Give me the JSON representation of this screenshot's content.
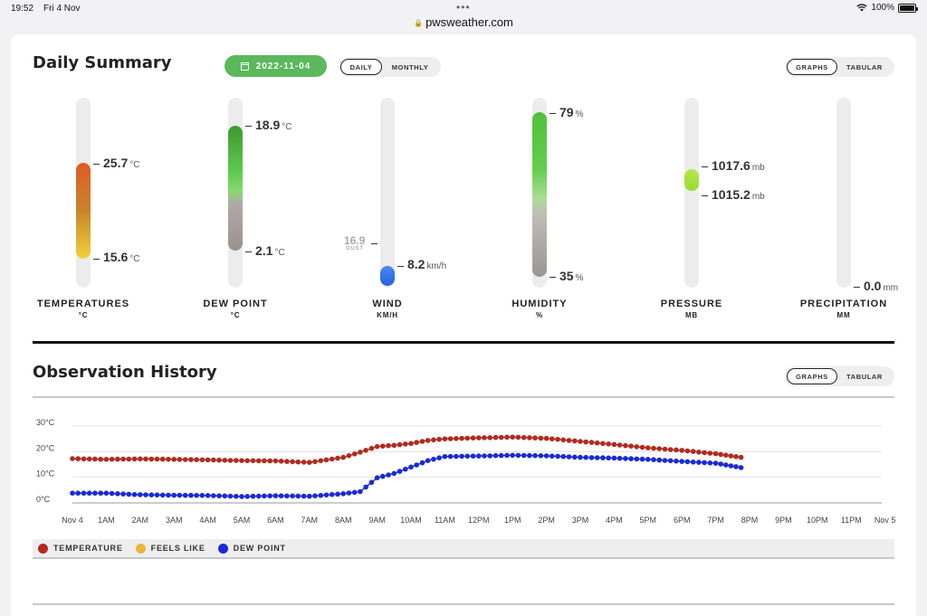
{
  "status_bar": {
    "time": "19:52",
    "date": "Fri 4 Nov",
    "url": "pwsweather.com",
    "battery": "100%"
  },
  "daily_summary": {
    "title": "Daily Summary",
    "date": "2022-11-04",
    "period_toggle": [
      "DAILY",
      "MONTHLY"
    ],
    "period_active": "DAILY",
    "view_toggle": [
      "GRAPHS",
      "TABULAR"
    ],
    "view_active": "GRAPHS"
  },
  "gauges": [
    {
      "label": "TEMPERATURES",
      "unit_label": "°C",
      "high": "25.7",
      "low": "15.6",
      "unit": "°C"
    },
    {
      "label": "DEW POINT",
      "unit_label": "°C",
      "high": "18.9",
      "low": "2.1",
      "unit": "°C"
    },
    {
      "label": "WIND",
      "unit_label": "KM/H",
      "value": "8.2",
      "unit": "km/h",
      "gust": "16.9",
      "gust_label": "GUST"
    },
    {
      "label": "HUMIDITY",
      "unit_label": "%",
      "high": "79",
      "low": "35",
      "unit": "%"
    },
    {
      "label": "PRESSURE",
      "unit_label": "MB",
      "high": "1017.6",
      "low": "1015.2",
      "unit": "mb"
    },
    {
      "label": "PRECIPITATION",
      "unit_label": "MM",
      "value": "0.0",
      "unit": "mm"
    }
  ],
  "observation_history": {
    "title": "Observation History",
    "view_toggle": [
      "GRAPHS",
      "TABULAR"
    ],
    "view_active": "GRAPHS"
  },
  "legend": [
    {
      "label": "TEMPERATURE",
      "color": "#b22a1e"
    },
    {
      "label": "FEELS LIKE",
      "color": "#e8b73a"
    },
    {
      "label": "DEW POINT",
      "color": "#1a2ad6"
    }
  ],
  "chart_data": {
    "type": "line",
    "y_ticks": [
      "30°C",
      "20°C",
      "10°C",
      "0°C"
    ],
    "ylim": [
      0,
      30
    ],
    "x_ticks": [
      "Nov 4",
      "1AM",
      "2AM",
      "3AM",
      "4AM",
      "5AM",
      "6AM",
      "7AM",
      "8AM",
      "9AM",
      "10AM",
      "11AM",
      "12PM",
      "1PM",
      "2PM",
      "3PM",
      "4PM",
      "5PM",
      "6PM",
      "7PM",
      "8PM",
      "9PM",
      "10PM",
      "11PM",
      "Nov 5"
    ],
    "x": [
      0,
      1,
      2,
      3,
      4,
      5,
      6,
      7,
      8,
      8.5,
      9,
      9.5,
      10,
      10.5,
      11,
      12,
      13,
      14,
      15,
      16,
      17,
      18,
      19,
      19.75
    ],
    "grid": true,
    "series": [
      {
        "name": "TEMPERATURE",
        "color": "#b22a1e",
        "values": [
          17.3,
          17.0,
          17.2,
          17.0,
          16.8,
          16.5,
          16.4,
          15.8,
          17.8,
          19.8,
          22.0,
          22.5,
          23.2,
          24.4,
          25.0,
          25.4,
          25.7,
          25.2,
          24.0,
          22.8,
          21.5,
          20.5,
          19.2,
          17.8
        ]
      },
      {
        "name": "DEW POINT",
        "color": "#1a2ad6",
        "values": [
          3.8,
          3.8,
          3.2,
          3.0,
          2.9,
          2.5,
          2.8,
          2.6,
          3.6,
          4.4,
          9.8,
          11.5,
          14.0,
          16.5,
          18.1,
          18.3,
          18.6,
          18.4,
          17.8,
          17.5,
          17.0,
          16.2,
          15.5,
          13.8
        ]
      }
    ]
  }
}
